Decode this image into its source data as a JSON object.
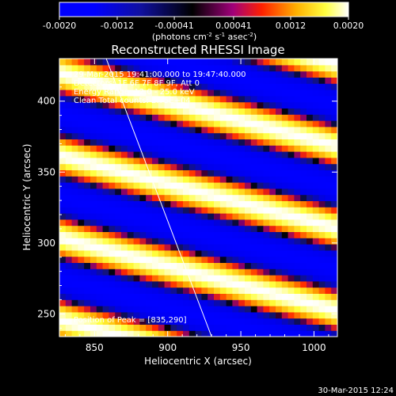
{
  "chart_data": {
    "type": "heatmap",
    "title": "Reconstructed RHESSI Image",
    "xlabel": "Heliocentric X (arcsec)",
    "ylabel": "Heliocentric Y (arcsec)",
    "xlim": [
      826,
      1016
    ],
    "ylim": [
      234,
      430
    ],
    "x_ticks": [
      850,
      900,
      950,
      1000
    ],
    "y_ticks": [
      250,
      300,
      350,
      400
    ],
    "colorbar": {
      "range": [
        -0.002,
        0.002
      ],
      "tick_labels": [
        "-0.0020",
        "-0.0012",
        "-0.00041",
        "0.00041",
        "0.0012",
        "0.0020"
      ],
      "tick_values": [
        -0.002,
        -0.0012,
        -0.00041,
        0.00041,
        0.0012,
        0.002
      ],
      "unit_line": "(photons cm",
      "unit_sup1": "-2",
      "unit_mid1": " s",
      "unit_sup2": "-1",
      "unit_mid2": " asec",
      "unit_sup3": "-2",
      "unit_end": ")",
      "colors": [
        "#0000ff",
        "#000000",
        "#ff0000",
        "#ffd000",
        "#ffffff"
      ]
    },
    "annotations": [
      "29-Mar-2015 19:41:00.000 to 19:47:40.000",
      "Detectors: 1F 6F 7F 8F 9F, Att 0",
      "Energy Range: 12.0 - 25.0 keV",
      "Clean    Total counts: 2.75E+04"
    ],
    "position_label": "Position of Peak = [835,290]",
    "timestamp": "30-Mar-2015 12:24",
    "fringe_pattern": {
      "description_values": "alternating positive (yellow/white) and negative (blue) stripes",
      "slope_dy_dx": -0.27,
      "period_arcsec": 58,
      "peak_intensity": 0.002
    },
    "limb_line": [
      [
        858,
        430
      ],
      [
        930,
        234
      ]
    ]
  }
}
